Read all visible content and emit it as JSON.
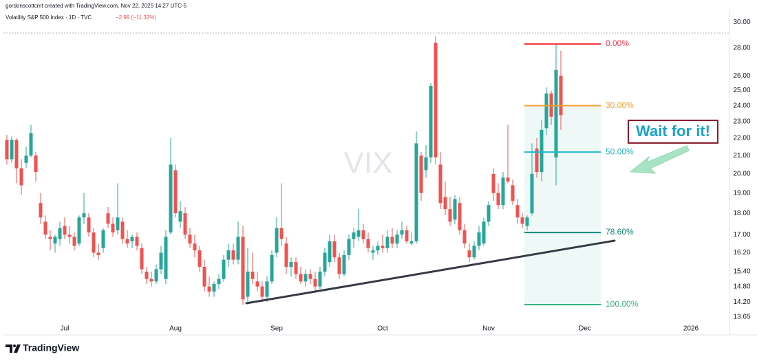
{
  "header": {
    "author_line": "gordonscottcmt created with TradingView.com, Nov 22, 2025 14:27 UTC-5",
    "symbol_line": "Volatility S&P 500 Index · 1D · TVC",
    "change": "−2.99 (−11.32%)",
    "watermark": "VIX",
    "annotation": "Wait for it!",
    "brand": "TradingView"
  },
  "chart_data": {
    "type": "candlestick",
    "log_scale": true,
    "grid": false,
    "up_color": "#26a69a",
    "down_color": "#ef5350",
    "ylim": [
      13.1,
      30.8
    ],
    "yticks": [
      {
        "value": 13.65,
        "label": "13.65"
      },
      {
        "value": 14.2,
        "label": "14.20"
      },
      {
        "value": 14.8,
        "label": "14.80"
      },
      {
        "value": 15.4,
        "label": "15.40"
      },
      {
        "value": 16.2,
        "label": "16.20"
      },
      {
        "value": 17,
        "label": "17.00"
      },
      {
        "value": 18,
        "label": "18.00"
      },
      {
        "value": 19,
        "label": "19.00"
      },
      {
        "value": 20,
        "label": "20.00"
      },
      {
        "value": 21,
        "label": "21.00"
      },
      {
        "value": 22,
        "label": "22.00"
      },
      {
        "value": 23,
        "label": "23.00"
      },
      {
        "value": 24,
        "label": "24.00"
      },
      {
        "value": 25,
        "label": "25.00"
      },
      {
        "value": 26,
        "label": "26.00"
      },
      {
        "value": 28,
        "label": "28.00"
      },
      {
        "value": 30,
        "label": "30.00"
      }
    ],
    "categories": [
      null,
      null,
      null,
      null,
      null,
      null,
      null,
      null,
      null,
      null,
      null,
      null,
      "Jul",
      null,
      null,
      null,
      null,
      null,
      null,
      null,
      null,
      null,
      null,
      null,
      null,
      null,
      null,
      null,
      null,
      null,
      null,
      null,
      null,
      null,
      null,
      "Aug",
      null,
      null,
      null,
      null,
      null,
      null,
      null,
      null,
      null,
      null,
      null,
      null,
      null,
      null,
      null,
      null,
      null,
      null,
      null,
      null,
      "Sep",
      null,
      null,
      null,
      null,
      null,
      null,
      null,
      null,
      null,
      null,
      null,
      null,
      null,
      null,
      null,
      null,
      null,
      null,
      null,
      null,
      null,
      "Oct",
      null,
      null,
      null,
      null,
      null,
      null,
      null,
      null,
      null,
      null,
      null,
      null,
      null,
      null,
      null,
      null,
      null,
      null,
      null,
      null,
      null,
      "Nov",
      null,
      null,
      null,
      null,
      null,
      null,
      null,
      null,
      null,
      null,
      null,
      null,
      null,
      null,
      null,
      null,
      null,
      null,
      null,
      "Dec",
      null,
      null,
      null,
      null,
      null,
      null,
      null,
      null,
      null,
      null,
      null,
      null,
      null,
      null,
      null,
      null,
      null,
      null,
      null,
      null,
      null,
      "2026",
      null,
      null,
      null,
      null,
      null,
      null,
      null
    ],
    "open": [
      21.9,
      20.8,
      21.9,
      20.3,
      20.6,
      21.0,
      21.0,
      18.5,
      17.6,
      16.9,
      16.6,
      16.8,
      17.4,
      17.0,
      16.9,
      16.6,
      17.8,
      17.8,
      17.1,
      16.2,
      16.4,
      18.0,
      17.5,
      17.2,
      17.6,
      16.8,
      16.7,
      16.9,
      16.4,
      15.4,
      15.1,
      15.0,
      15.5,
      15.1,
      17.1,
      20.2,
      17.6,
      18.0,
      17.0,
      16.6,
      16.3,
      15.6,
      14.8,
      14.6,
      14.9,
      15.1,
      15.9,
      16.3,
      15.9,
      16.9,
      14.4,
      15.4,
      15.0,
      14.8,
      14.4,
      15.0,
      16.2,
      17.3,
      16.6,
      15.6,
      15.8,
      15.3,
      15.0,
      15.3,
      15.1,
      14.8,
      15.4,
      15.8,
      16.7,
      16.0,
      15.3,
      16.1,
      16.8,
      16.9,
      17.2,
      16.8,
      16.2,
      16.3,
      16.5,
      16.4,
      16.9,
      16.6,
      17.0,
      17.2,
      16.6,
      16.7,
      21.0,
      20.2,
      20.9,
      28.4,
      20.5,
      18.8,
      18.2,
      17.7,
      18.5,
      17.2,
      16.3,
      16.0,
      16.5,
      16.6,
      17.6,
      20.0,
      19.0,
      18.4,
      19.8,
      19.4,
      18.4,
      17.8,
      17.4,
      18.0,
      21.4,
      20.1,
      22.6,
      24.8,
      20.9,
      26.0,
      null,
      null,
      null,
      null,
      null,
      null,
      null,
      null,
      null,
      null,
      null,
      null,
      null,
      null,
      null,
      null,
      null,
      null,
      null,
      null,
      null,
      null,
      null,
      null,
      null,
      null,
      null,
      null,
      null,
      null,
      null,
      null,
      null,
      null
    ],
    "high": [
      22.2,
      22.1,
      22.0,
      20.8,
      21.5,
      22.8,
      21.2,
      19.0,
      17.9,
      17.2,
      17.0,
      17.6,
      17.8,
      17.4,
      17.1,
      17.9,
      19.0,
      18.0,
      17.3,
      16.6,
      17.3,
      18.3,
      17.8,
      19.5,
      17.8,
      17.2,
      17.0,
      17.1,
      16.6,
      15.6,
      15.4,
      15.7,
      16.5,
      17.2,
      22.0,
      20.5,
      18.6,
      18.3,
      17.3,
      17.0,
      16.5,
      15.9,
      15.2,
      15.0,
      15.3,
      16.1,
      16.6,
      16.6,
      17.6,
      17.4,
      16.4,
      16.2,
      15.4,
      15.0,
      15.2,
      16.3,
      17.8,
      19.5,
      16.9,
      16.0,
      16.0,
      15.6,
      15.5,
      15.5,
      15.4,
      15.6,
      16.4,
      17.0,
      17.0,
      16.2,
      16.3,
      17.0,
      17.3,
      18.2,
      17.5,
      17.1,
      16.5,
      16.7,
      17.0,
      17.2,
      17.3,
      17.2,
      17.6,
      17.4,
      17.1,
      22.4,
      21.2,
      21.6,
      25.5,
      28.9,
      21.2,
      19.6,
      18.8,
      18.9,
      18.8,
      17.5,
      16.6,
      16.7,
      17.4,
      17.8,
      18.6,
      20.3,
      19.5,
      20.1,
      22.8,
      19.7,
      18.7,
      18.0,
      17.9,
      21.7,
      22.0,
      23.1,
      25.2,
      25.0,
      28.3,
      27.8,
      null,
      null,
      null,
      null,
      null,
      null,
      null,
      null,
      null,
      null,
      null,
      null,
      null,
      null,
      null,
      null,
      null,
      null,
      null,
      null,
      null,
      null,
      null,
      null,
      null,
      null,
      null,
      null,
      null,
      null,
      null,
      null,
      null,
      null
    ],
    "low": [
      20.5,
      20.6,
      19.5,
      18.9,
      20.3,
      20.9,
      19.6,
      17.5,
      16.8,
      16.3,
      16.2,
      16.5,
      16.8,
      16.6,
      16.3,
      16.5,
      17.5,
      16.9,
      16.0,
      15.9,
      16.2,
      17.3,
      16.9,
      17.0,
      16.6,
      16.4,
      16.4,
      16.3,
      15.3,
      14.9,
      14.8,
      14.9,
      15.3,
      14.9,
      17.0,
      17.8,
      17.3,
      16.8,
      16.4,
      16.0,
      15.4,
      14.6,
      14.4,
      14.4,
      14.7,
      15.0,
      15.6,
      15.7,
      15.7,
      14.1,
      14.2,
      14.9,
      14.6,
      14.2,
      14.2,
      14.9,
      16.0,
      16.5,
      15.3,
      15.2,
      15.1,
      14.9,
      14.8,
      14.9,
      14.6,
      14.7,
      15.2,
      15.6,
      15.8,
      15.1,
      15.2,
      15.9,
      16.4,
      16.7,
      16.6,
      16.2,
      15.9,
      16.1,
      16.2,
      16.2,
      16.4,
      16.4,
      16.8,
      16.6,
      16.5,
      16.6,
      18.6,
      19.8,
      20.6,
      20.5,
      18.2,
      17.9,
      17.4,
      17.5,
      17.0,
      16.4,
      15.8,
      15.9,
      16.3,
      16.5,
      17.4,
      18.6,
      18.2,
      18.2,
      19.5,
      18.4,
      17.5,
      17.3,
      17.2,
      17.9,
      19.8,
      19.6,
      22.2,
      22.8,
      19.4,
      22.5,
      null,
      null,
      null,
      null,
      null,
      null,
      null,
      null,
      null,
      null,
      null,
      null,
      null,
      null,
      null,
      null,
      null,
      null,
      null,
      null,
      null,
      null,
      null,
      null,
      null,
      null,
      null,
      null,
      null,
      null,
      null,
      null,
      null,
      null
    ],
    "close": [
      20.8,
      21.9,
      20.3,
      19.4,
      21.0,
      22.3,
      20.1,
      17.8,
      17.0,
      16.8,
      16.9,
      17.3,
      17.0,
      16.9,
      16.5,
      17.8,
      18.0,
      17.1,
      16.2,
      16.1,
      17.2,
      17.5,
      17.1,
      17.8,
      16.8,
      16.6,
      16.9,
      16.5,
      15.5,
      15.1,
      15.0,
      15.5,
      16.2,
      16.9,
      20.5,
      18.0,
      18.1,
      17.0,
      16.6,
      16.3,
      15.6,
      14.8,
      14.6,
      14.9,
      15.1,
      15.9,
      16.3,
      15.9,
      16.9,
      14.3,
      15.4,
      15.1,
      14.8,
      14.4,
      15.0,
      16.1,
      17.3,
      16.8,
      15.6,
      15.8,
      15.3,
      15.0,
      15.3,
      15.1,
      14.8,
      15.4,
      16.2,
      16.7,
      16.0,
      15.3,
      16.1,
      16.8,
      17.1,
      17.2,
      16.8,
      16.4,
      16.3,
      16.5,
      16.4,
      16.9,
      16.6,
      17.0,
      17.2,
      16.7,
      16.7,
      21.7,
      19.0,
      20.9,
      25.3,
      20.9,
      18.5,
      18.2,
      17.6,
      18.7,
      17.2,
      16.6,
      16.0,
      16.5,
      17.1,
      17.6,
      18.4,
      19.0,
      18.4,
      19.8,
      19.6,
      18.6,
      17.8,
      17.5,
      17.8,
      20.0,
      20.1,
      22.5,
      24.8,
      23.3,
      26.4,
      23.4,
      null,
      null,
      null,
      null,
      null,
      null,
      null,
      null,
      null,
      null,
      null,
      null,
      null,
      null,
      null,
      null,
      null,
      null,
      null,
      null,
      null,
      null,
      null,
      null,
      null,
      null,
      null,
      null,
      null,
      null,
      null,
      null,
      null,
      null
    ],
    "fib_levels": [
      {
        "label": "0.00%",
        "value": 28.3,
        "color": "#f23645"
      },
      {
        "label": "30.00%",
        "value": 24.0,
        "color": "#f7a234"
      },
      {
        "label": "50.00%",
        "value": 21.2,
        "color": "#22b8c9"
      },
      {
        "label": "78.60%",
        "value": 17.1,
        "color": "#12877c"
      },
      {
        "label": "100.00%",
        "value": 14.1,
        "color": "#36b37e"
      }
    ]
  }
}
